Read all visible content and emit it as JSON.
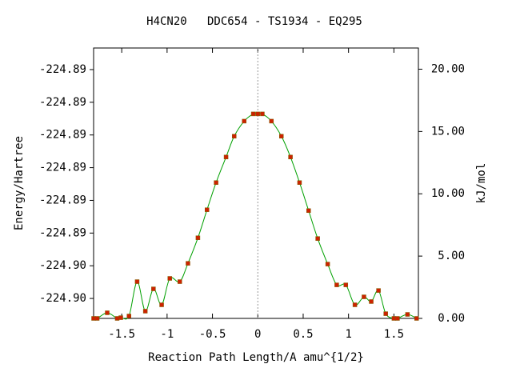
{
  "chart_data": {
    "type": "line",
    "title": "H4CN20   DDC654 - TS1934 - EQ295",
    "x_label": "Reaction Path Length/A amu^{1/2}",
    "y_label": "Energy/Hartree",
    "y2_label": "kJ/mol",
    "xlim": [
      -1.81,
      1.77
    ],
    "xticks": [
      -1.5,
      -1,
      -0.5,
      0,
      0.5,
      1,
      1.5
    ],
    "ylim": [
      -224.89711,
      -224.88884
    ],
    "yticks": [
      {
        "value": -224.8895,
        "label": "-224.89"
      },
      {
        "value": -224.8905,
        "label": "-224.89"
      },
      {
        "value": -224.8915,
        "label": "-224.89"
      },
      {
        "value": -224.8925,
        "label": "-224.89"
      },
      {
        "value": -224.8935,
        "label": "-224.89"
      },
      {
        "value": -224.8945,
        "label": "-224.89"
      },
      {
        "value": -224.8955,
        "label": "-224.90"
      },
      {
        "value": -224.8965,
        "label": "-224.90"
      }
    ],
    "y2lim": [
      0,
      21.7
    ],
    "y2ticks": [
      {
        "value": 0,
        "label": "0.00"
      },
      {
        "value": 5,
        "label": "5.00"
      },
      {
        "value": 10,
        "label": "10.00"
      },
      {
        "value": 15,
        "label": "15.00"
      },
      {
        "value": 20,
        "label": "20.00"
      }
    ],
    "x": [
      -1.81,
      -1.77,
      -1.66,
      -1.55,
      -1.51,
      -1.42,
      -1.33,
      -1.24,
      -1.15,
      -1.06,
      -0.97,
      -0.86,
      -0.77,
      -0.66,
      -0.56,
      -0.46,
      -0.35,
      -0.26,
      -0.15,
      -0.05,
      0,
      0.05,
      0.15,
      0.26,
      0.36,
      0.46,
      0.56,
      0.66,
      0.77,
      0.87,
      0.97,
      1.07,
      1.17,
      1.25,
      1.33,
      1.41,
      1.5,
      1.54,
      1.65,
      1.75
    ],
    "series": [
      {
        "color": "#00a000",
        "marker_color": "#cc2200",
        "axis": "y2",
        "values": [
          0,
          0,
          0.45,
          0,
          0.06,
          0.19,
          2.95,
          0.58,
          2.37,
          1.09,
          3.21,
          2.95,
          4.42,
          6.47,
          8.72,
          10.9,
          12.95,
          14.62,
          15.83,
          16.41,
          16.41,
          16.41,
          15.83,
          14.62,
          12.95,
          10.9,
          8.65,
          6.41,
          4.36,
          2.69,
          2.69,
          1.09,
          1.73,
          1.35,
          2.24,
          0.38,
          0,
          0,
          0.32,
          0
        ]
      }
    ]
  }
}
